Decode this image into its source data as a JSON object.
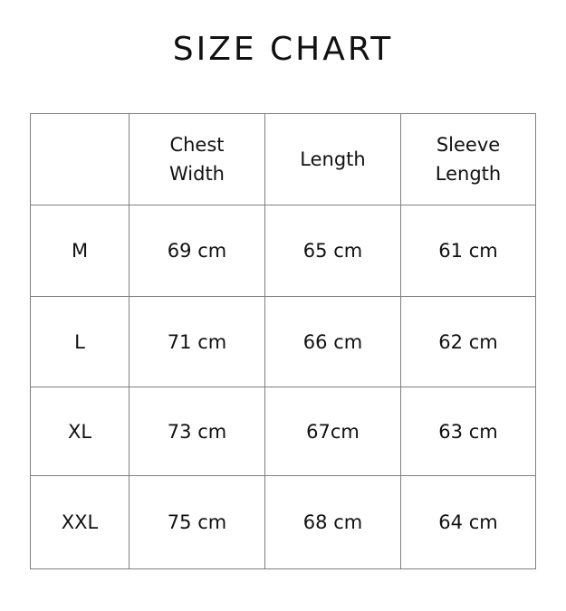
{
  "title": "SIZE CHART",
  "headers": [
    "",
    "Chest\nWidth",
    "Length",
    "Sleeve\nLength"
  ],
  "header_lines": {
    "chest": [
      "Chest",
      "Width"
    ],
    "length": "Length",
    "sleeve": [
      "Sleeve",
      "Length"
    ]
  },
  "rows": [
    {
      "size": "M",
      "chest": "69 cm",
      "length": "65 cm",
      "sleeve": "61 cm"
    },
    {
      "size": "L",
      "chest": "71 cm",
      "length": "66 cm",
      "sleeve": "62 cm"
    },
    {
      "size": "XL",
      "chest": "73 cm",
      "length": "67cm",
      "sleeve": "63 cm"
    },
    {
      "size": "XXL",
      "chest": "75 cm",
      "length": "68 cm",
      "sleeve": "64 cm"
    }
  ],
  "colors": {
    "border": "#808080",
    "text": "#111111"
  }
}
